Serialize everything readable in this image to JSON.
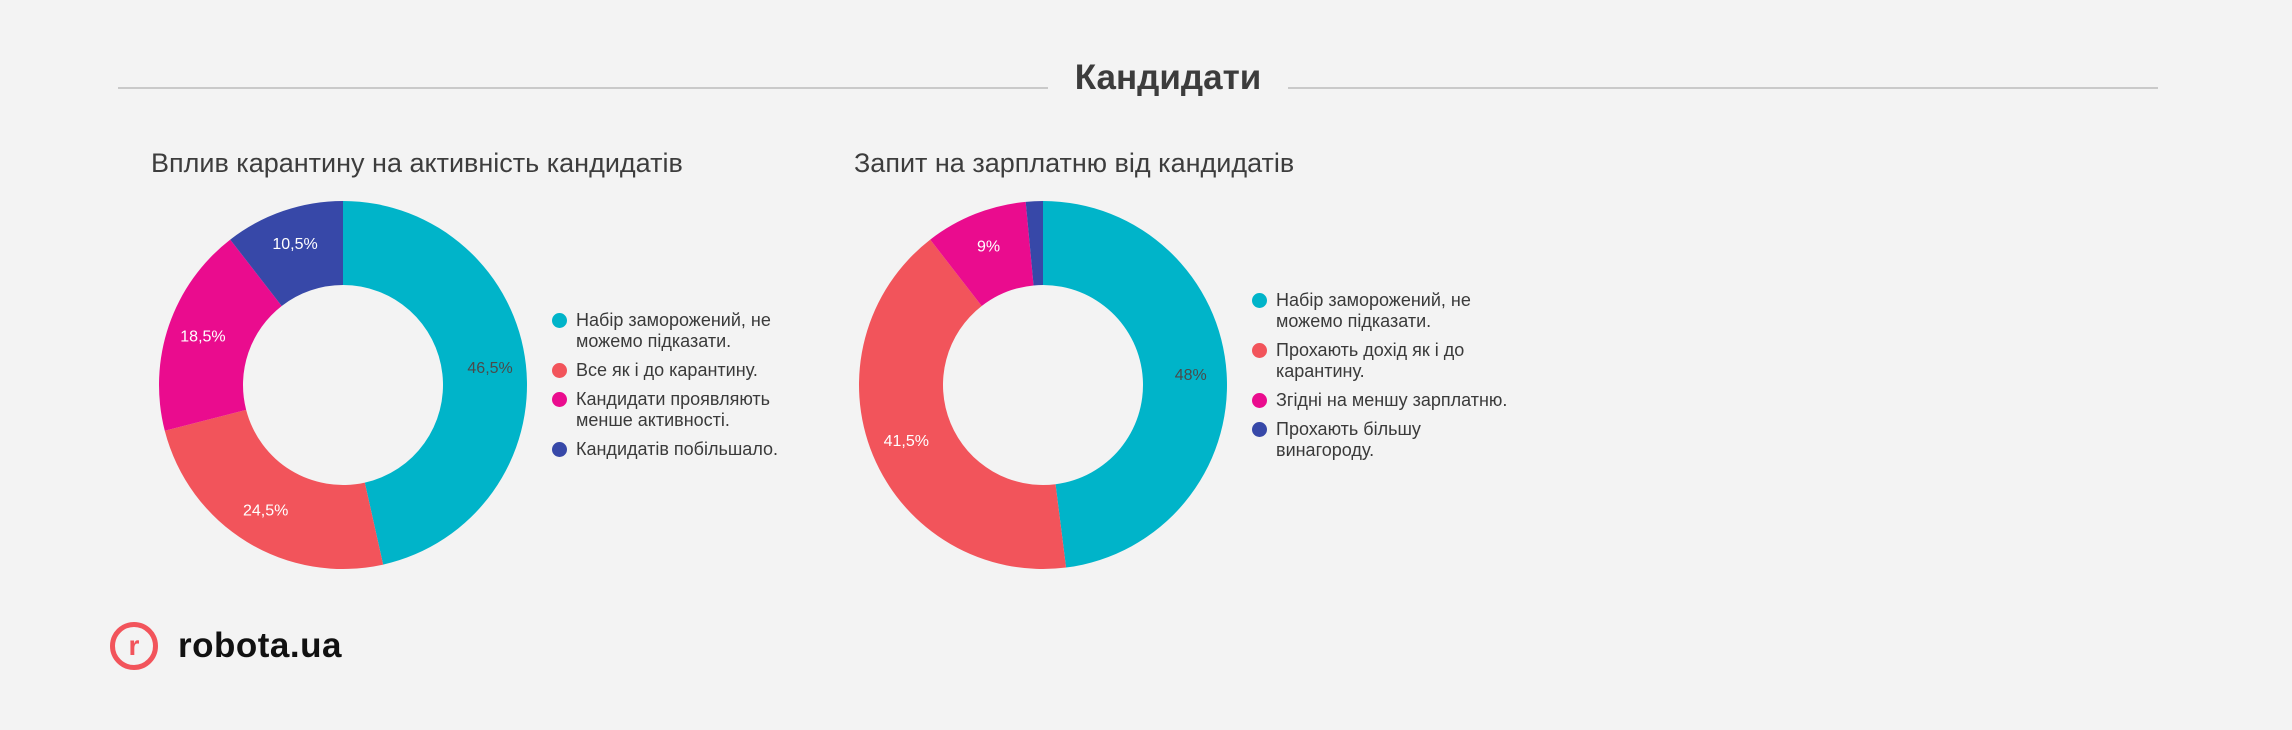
{
  "header": {
    "title": "Кандидати"
  },
  "logo": {
    "mark": "r",
    "text": "robota.ua"
  },
  "colors": {
    "teal": "#00b4c9",
    "coral": "#f2545b",
    "magenta": "#ea0c8e",
    "indigo": "#3748a8"
  },
  "chart_data": [
    {
      "type": "pie",
      "donut": true,
      "title": "Вплив карантину на активність кандидатів",
      "legend_position": "right",
      "slices": [
        {
          "label": "Набір заморожений, не можемо підказати.",
          "value": 46.5,
          "display": "46,5%",
          "color": "#00b4c9"
        },
        {
          "label": "Все як і до карантину.",
          "value": 24.5,
          "display": "24,5%",
          "color": "#f2545b"
        },
        {
          "label": "Кандидати проявляють менше активності.",
          "value": 18.5,
          "display": "18,5%",
          "color": "#ea0c8e"
        },
        {
          "label": "Кандидатів побільшало.",
          "value": 10.5,
          "display": "10,5%",
          "color": "#3748a8"
        }
      ]
    },
    {
      "type": "pie",
      "donut": true,
      "title": "Запит на зарплатню від кандидатів",
      "legend_position": "right",
      "slices": [
        {
          "label": "Набір заморожений, не можемо підказати.",
          "value": 48,
          "display": "48%",
          "color": "#00b4c9"
        },
        {
          "label": "Прохають дохід як і до карантину.",
          "value": 41.5,
          "display": "41,5%",
          "color": "#f2545b"
        },
        {
          "label": "Згідні на меншу зарплатню.",
          "value": 9,
          "display": "9%",
          "color": "#ea0c8e"
        },
        {
          "label": "Прохають більшу винагороду.",
          "value": 1.5,
          "display": "",
          "color": "#3748a8"
        }
      ]
    }
  ]
}
